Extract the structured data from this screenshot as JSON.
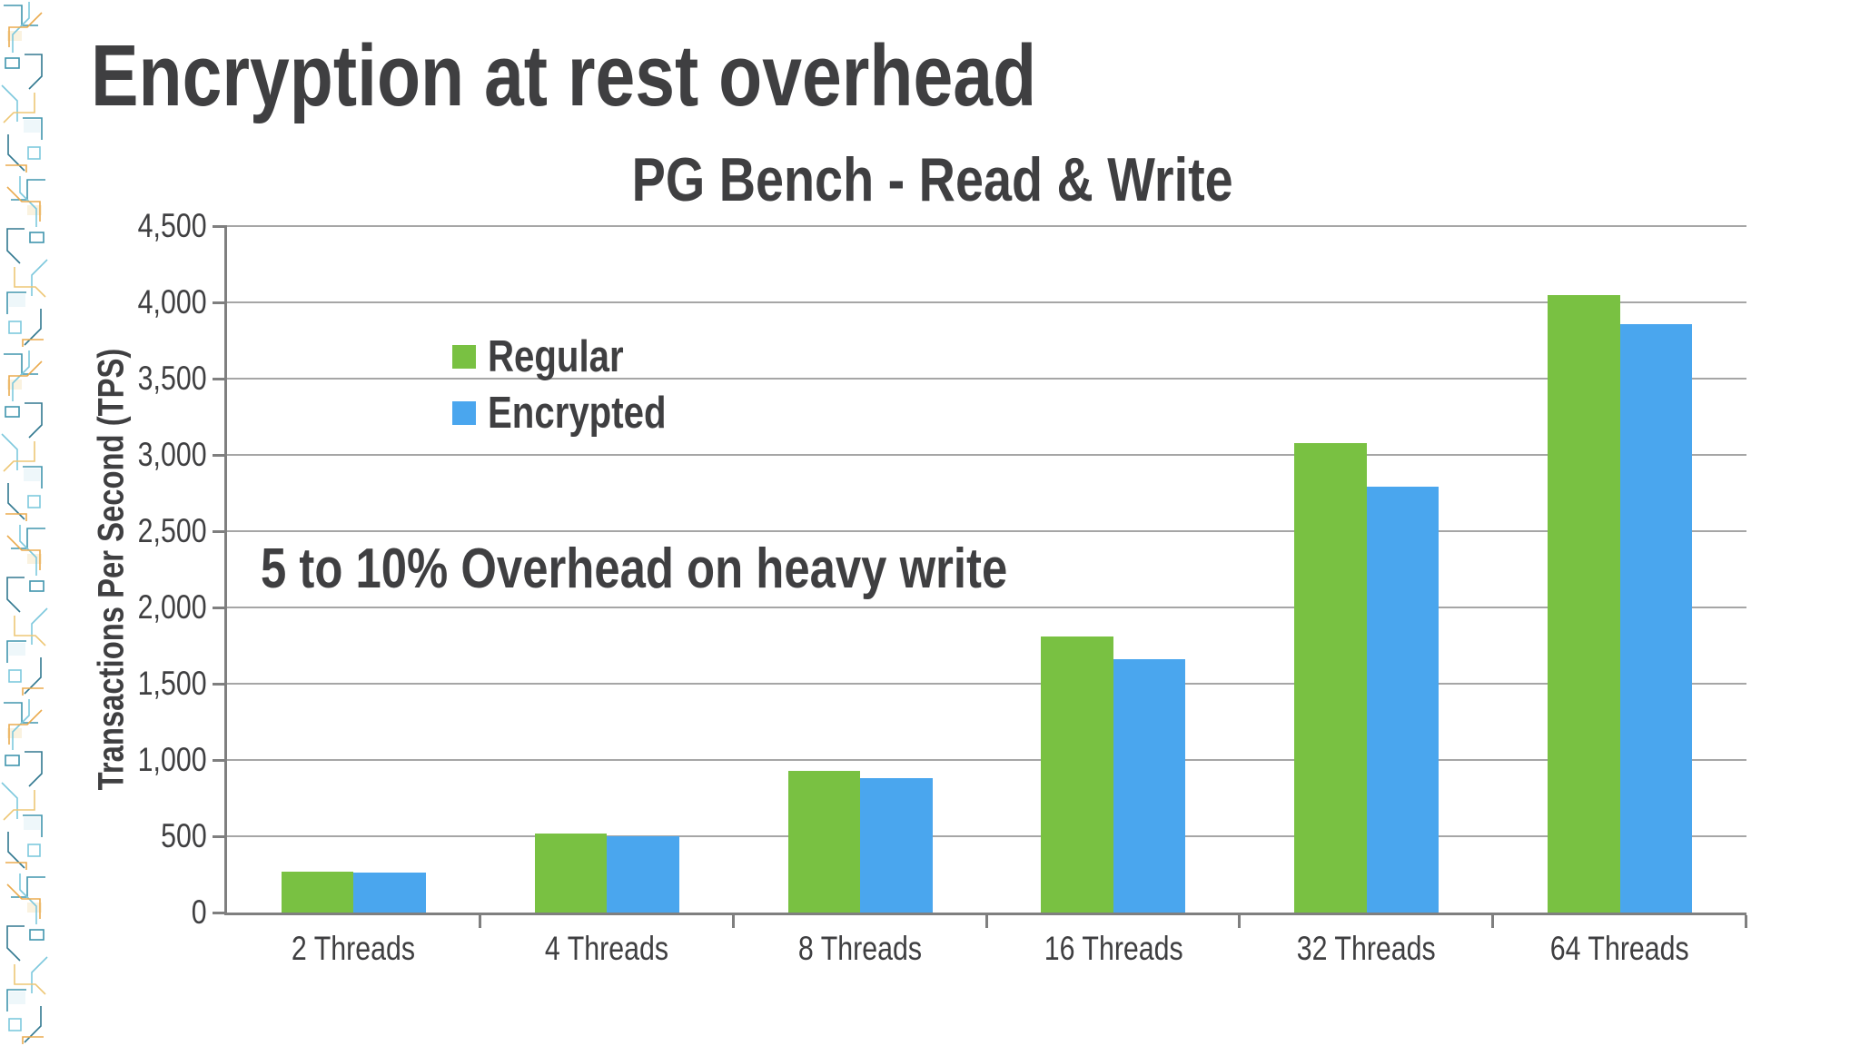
{
  "slide": {
    "title": "Encryption at rest overhead",
    "annotation": "5 to 10% Overhead on heavy write"
  },
  "chart_data": {
    "type": "bar",
    "title": "PG Bench - Read & Write",
    "xlabel": "",
    "ylabel": "Transactions Per Second (TPS)",
    "categories": [
      "2 Threads",
      "4 Threads",
      "8 Threads",
      "16 Threads",
      "32 Threads",
      "64 Threads"
    ],
    "series": [
      {
        "name": "Regular",
        "color": "#79c142",
        "values": [
          270,
          520,
          930,
          1810,
          3080,
          4050
        ]
      },
      {
        "name": "Encrypted",
        "color": "#4aa6ee",
        "values": [
          260,
          500,
          880,
          1660,
          2790,
          3860
        ]
      }
    ],
    "ylim": [
      0,
      4500
    ],
    "yticks": [
      {
        "value": 0,
        "label": "0"
      },
      {
        "value": 500,
        "label": "500"
      },
      {
        "value": 1000,
        "label": "1,000"
      },
      {
        "value": 1500,
        "label": "1,500"
      },
      {
        "value": 2000,
        "label": "2,000"
      },
      {
        "value": 2500,
        "label": "2,500"
      },
      {
        "value": 3000,
        "label": "3,000"
      },
      {
        "value": 3500,
        "label": "3,500"
      },
      {
        "value": 4000,
        "label": "4,000"
      },
      {
        "value": 4500,
        "label": "4,500"
      }
    ],
    "grid": true,
    "legend_position": "upper-left-inside"
  },
  "colors": {
    "text": "#3f3f41",
    "gridline": "#a6a6a6",
    "axis": "#7f7f7f",
    "regular_green": "#79c142",
    "encrypted_blue": "#4aa6ee"
  }
}
